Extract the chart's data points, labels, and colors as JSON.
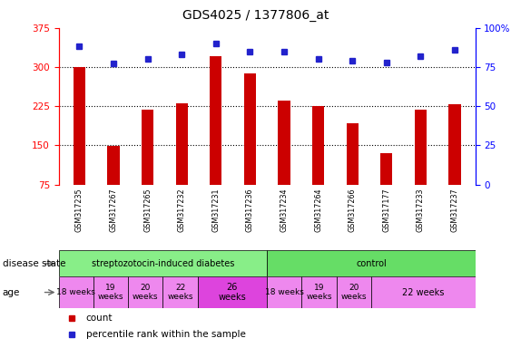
{
  "title": "GDS4025 / 1377806_at",
  "samples": [
    "GSM317235",
    "GSM317267",
    "GSM317265",
    "GSM317232",
    "GSM317231",
    "GSM317236",
    "GSM317234",
    "GSM317264",
    "GSM317266",
    "GSM317177",
    "GSM317233",
    "GSM317237"
  ],
  "counts": [
    300,
    148,
    218,
    230,
    320,
    288,
    235,
    225,
    193,
    135,
    218,
    228
  ],
  "percentiles": [
    88,
    77,
    80,
    83,
    90,
    85,
    85,
    80,
    79,
    78,
    82,
    86
  ],
  "ylim_left": [
    75,
    375
  ],
  "ylim_right": [
    0,
    100
  ],
  "yticks_left": [
    75,
    150,
    225,
    300,
    375
  ],
  "yticks_right": [
    0,
    25,
    50,
    75,
    100
  ],
  "bar_color": "#cc0000",
  "dot_color": "#2222cc",
  "background_color": "#ffffff",
  "grid_values": [
    150,
    225,
    300
  ],
  "legend_count_label": "count",
  "legend_percentile_label": "percentile rank within the sample",
  "disease_state_label": "disease state",
  "age_label": "age",
  "ds_groups": [
    {
      "label": "streptozotocin-induced diabetes",
      "start": 0,
      "end": 6,
      "color": "#88ee88"
    },
    {
      "label": "control",
      "start": 6,
      "end": 12,
      "color": "#66dd66"
    }
  ],
  "age_defs": [
    {
      "label": "18 weeks",
      "start": 0,
      "end": 1,
      "color": "#ee88ee"
    },
    {
      "label": "19\nweeks",
      "start": 1,
      "end": 2,
      "color": "#ee88ee"
    },
    {
      "label": "20\nweeks",
      "start": 2,
      "end": 3,
      "color": "#ee88ee"
    },
    {
      "label": "22\nweeks",
      "start": 3,
      "end": 4,
      "color": "#ee88ee"
    },
    {
      "label": "26\nweeks",
      "start": 4,
      "end": 6,
      "color": "#dd44dd"
    },
    {
      "label": "18 weeks",
      "start": 6,
      "end": 7,
      "color": "#ee88ee"
    },
    {
      "label": "19\nweeks",
      "start": 7,
      "end": 8,
      "color": "#ee88ee"
    },
    {
      "label": "20\nweeks",
      "start": 8,
      "end": 9,
      "color": "#ee88ee"
    },
    {
      "label": "22 weeks",
      "start": 9,
      "end": 12,
      "color": "#ee88ee"
    }
  ]
}
